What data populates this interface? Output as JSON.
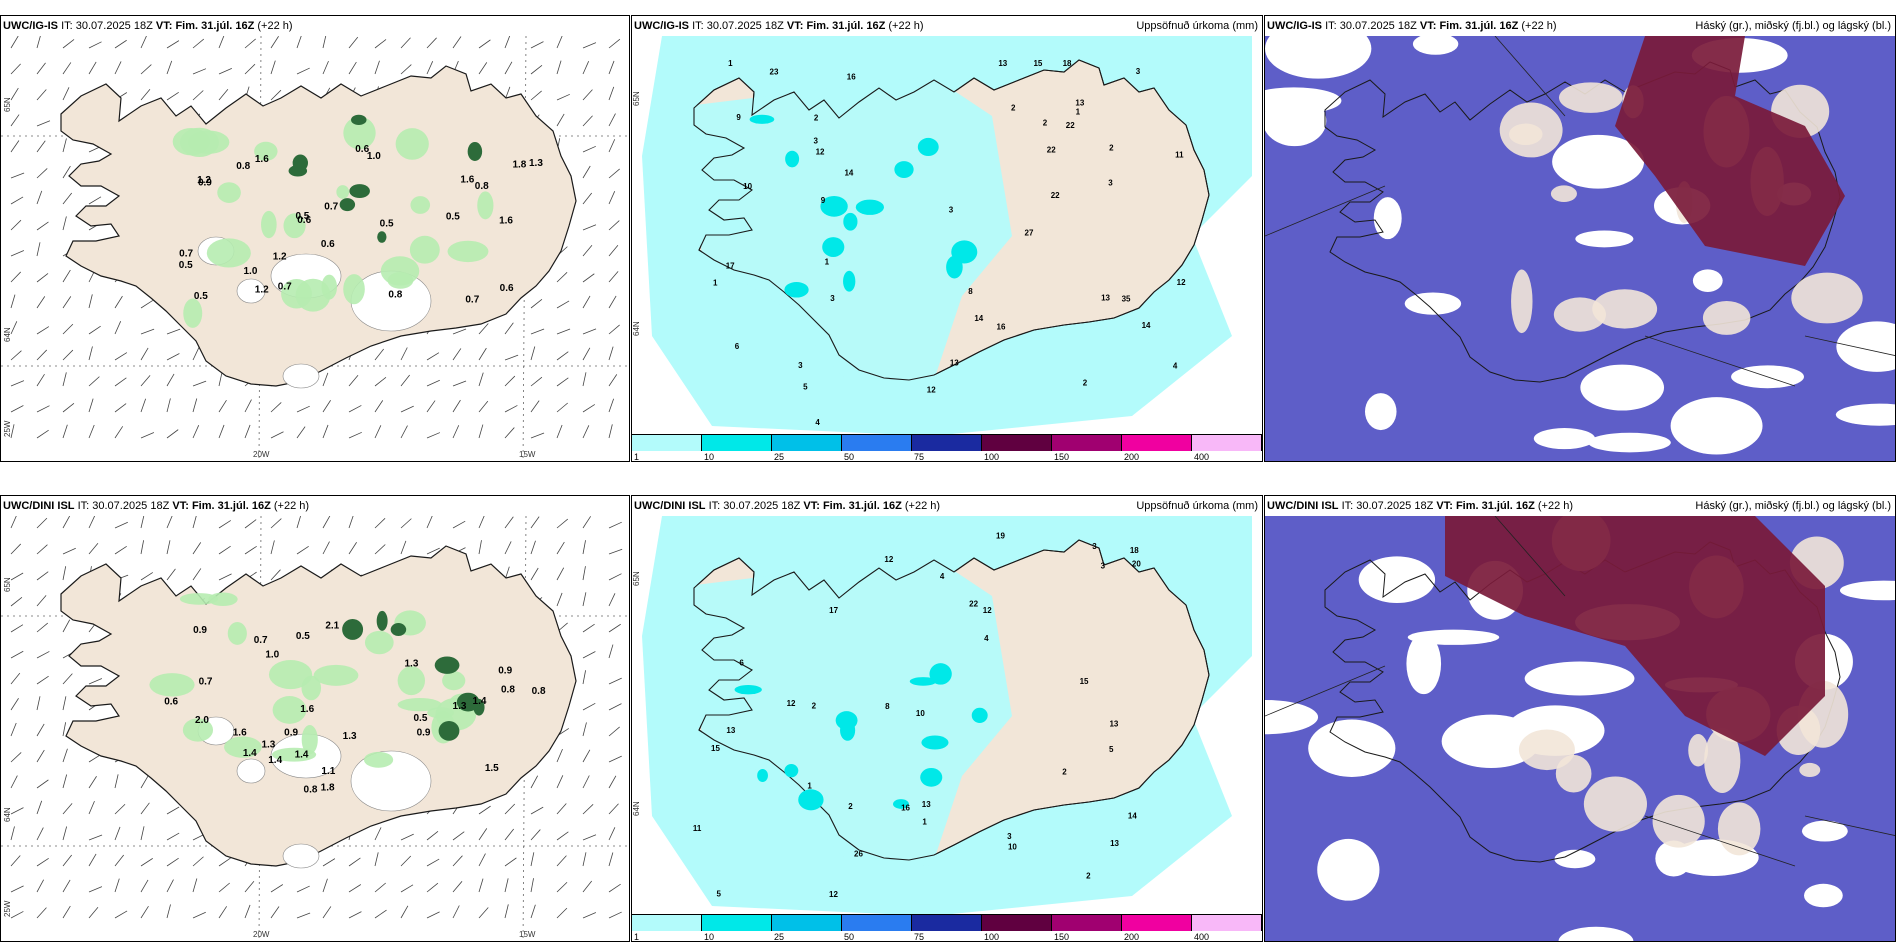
{
  "colors": {
    "land": "#f2e6d8",
    "coast": "#1a1a1a",
    "precip_light": "#b3fbfb",
    "precip_mid": "#00e8e8",
    "ice_white": "#ffffff",
    "cloud_low": "#5e5ec8",
    "cloud_high": "#7a1a3a",
    "green_light": "#b6ecb0",
    "green_dark": "#2d6b3a"
  },
  "panels": [
    {
      "model": "UWC/IG-IS",
      "it_label": "IT:",
      "it_value": "30.07.2025 18Z",
      "vt_label": "VT:",
      "vt_value": "Fim. 31.júl. 16Z",
      "lead": "(+22 h)",
      "right_title": "",
      "type": "wind",
      "numbers": [
        "0.8",
        "1.6",
        "0.6",
        "0.7",
        "0.5",
        "0.9",
        "0.5",
        "1.2",
        "1.2",
        "1.8",
        "1.6",
        "1.6",
        "1.2",
        "1.3",
        "0.7",
        "1.0",
        "0.5",
        "0.8",
        "0.6",
        "0.8",
        "0.7",
        "0.5",
        "0.5",
        "0.7",
        "0.6",
        "0.6",
        "1.0"
      ],
      "lat_labels": [
        "65N",
        "64N",
        "25W"
      ],
      "lon_labels": [
        "20W",
        "15W"
      ]
    },
    {
      "model": "UWC/IG-IS",
      "it_label": "IT:",
      "it_value": "30.07.2025 18Z",
      "vt_label": "VT:",
      "vt_value": "Fim. 31.júl. 16Z",
      "lead": "(+22 h)",
      "right_title": "Uppsöfnuð úrkoma (mm)",
      "type": "precip",
      "numbers": [
        "1",
        "2",
        "4",
        "4",
        "5",
        "6",
        "8",
        "12",
        "9",
        "13",
        "13",
        "14",
        "12",
        "10",
        "17",
        "22",
        "23",
        "22",
        "15",
        "16",
        "14",
        "16",
        "14",
        "11",
        "35",
        "9",
        "12",
        "13",
        "22",
        "18",
        "27",
        "13",
        "2",
        "3",
        "3",
        "2",
        "1",
        "1",
        "2",
        "2",
        "3",
        "3",
        "3",
        "3",
        "1"
      ],
      "lat_labels": [
        "65N",
        "64N"
      ],
      "colorbar": [
        "1",
        "10",
        "25",
        "50",
        "75",
        "100",
        "150",
        "200",
        "400"
      ]
    },
    {
      "model": "UWC/IG-IS",
      "it_label": "IT:",
      "it_value": "30.07.2025 18Z",
      "vt_label": "VT:",
      "vt_value": "Fim. 31.júl. 16Z",
      "lead": "(+22 h)",
      "right_title": "Háský (gr.), miðský (fj.bl.) og lágský (bl.)",
      "type": "cloud"
    },
    {
      "model": "UWC/DINI ISL",
      "it_label": "IT:",
      "it_value": "30.07.2025 18Z",
      "vt_label": "VT:",
      "vt_value": "Fim. 31.júl. 16Z",
      "lead": "(+22 h)",
      "right_title": "",
      "type": "wind",
      "numbers": [
        "0.9",
        "0.7",
        "1.6",
        "1.6",
        "1.3",
        "0.9",
        "1.4",
        "1.4",
        "1.3",
        "1.1",
        "1.4",
        "1.5",
        "0.9",
        "1.8",
        "1.4",
        "0.9",
        "1.3",
        "0.8",
        "2.1",
        "0.7",
        "0.8",
        "1.3",
        "1.0",
        "0.5",
        "0.8",
        "2.0",
        "0.6",
        "0.5"
      ],
      "lat_labels": [
        "65N",
        "64N",
        "25W"
      ],
      "lon_labels": [
        "20W",
        "15W"
      ]
    },
    {
      "model": "UWC/DINI ISL",
      "it_label": "IT:",
      "it_value": "30.07.2025 18Z",
      "vt_label": "VT:",
      "vt_value": "Fim. 31.júl. 16Z",
      "lead": "(+22 h)",
      "right_title": "Uppsöfnuð úrkoma (mm)",
      "type": "precip",
      "numbers": [
        "12",
        "3",
        "3",
        "5",
        "10",
        "13",
        "12",
        "13",
        "16",
        "15",
        "17",
        "20",
        "13",
        "12",
        "22",
        "14",
        "26",
        "15",
        "19",
        "13",
        "18",
        "11",
        "10",
        "12",
        "8",
        "4",
        "5",
        "6",
        "2",
        "2",
        "1",
        "1",
        "2",
        "3",
        "4",
        "2"
      ],
      "lat_labels": [
        "65N",
        "64N"
      ],
      "colorbar": [
        "1",
        "10",
        "25",
        "50",
        "75",
        "100",
        "150",
        "200",
        "400"
      ]
    },
    {
      "model": "UWC/DINI ISL",
      "it_label": "IT:",
      "it_value": "30.07.2025 18Z",
      "vt_label": "VT:",
      "vt_value": "Fim. 31.júl. 16Z",
      "lead": "(+22 h)",
      "right_title": "Háský (gr.), miðský (fj.bl.) og lágský (bl.)",
      "type": "cloud"
    }
  ],
  "colorbar_colors": [
    "#b3fbfb",
    "#00e8e8",
    "#00c0e8",
    "#2a7cf0",
    "#1a2aa0",
    "#600040",
    "#a00070",
    "#f000a0",
    "#f8b8f8"
  ]
}
